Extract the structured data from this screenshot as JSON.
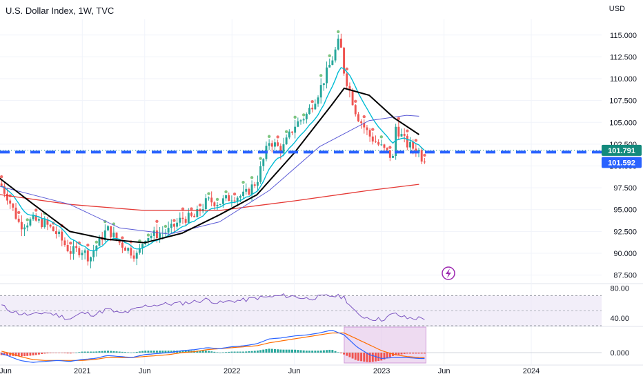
{
  "header": {
    "title": "U.S. Dollar Index, 1W, TVC",
    "currency": "USD"
  },
  "colors": {
    "up": "#26a69a",
    "down": "#ef5350",
    "ema_fast": "#00bcd4",
    "sma_mid": "#000000",
    "sma_slow": "#5b5bd6",
    "sma_long": "#e53935",
    "dash": "#2962ff",
    "price_badge": "#138a7d",
    "prev_badge": "#2962ff",
    "rsi_line": "#7e57c2",
    "rsi_band": "#ede7f6",
    "macd_line": "#2962ff",
    "signal_line": "#ff6d00",
    "hist_up": "#26a69a",
    "hist_down": "#ef5350",
    "highlight": "#e1bee7",
    "highlight_border": "#ab47bc"
  },
  "price_badges": {
    "last": "101.791",
    "prev": "101.592"
  },
  "icons": {
    "lightning": "lightning-icon"
  },
  "chart_data": [
    {
      "type": "candlestick",
      "title": "U.S. Dollar Index, 1W, TVC",
      "ylabel": "USD",
      "ylim": [
        86.6,
        116.8
      ],
      "yticks": [
        "87.500",
        "90.000",
        "92.500",
        "95.000",
        "97.500",
        "100.000",
        "102.500",
        "105.000",
        "107.500",
        "110.000",
        "112.500",
        "115.000"
      ],
      "xticks": [
        "Jun",
        "2021",
        "Jun",
        "2022",
        "Jun",
        "2023",
        "Jun",
        "2024"
      ],
      "last_price": 101.791,
      "reference_level": 101.592,
      "close_series": [
        {
          "x": "2020-06",
          "y": 99.0
        },
        {
          "x": "2020-07",
          "y": 96.5
        },
        {
          "x": "2020-08",
          "y": 93.2
        },
        {
          "x": "2020-09",
          "y": 93.8
        },
        {
          "x": "2020-10",
          "y": 93.4
        },
        {
          "x": "2020-11",
          "y": 92.2
        },
        {
          "x": "2020-12",
          "y": 90.2
        },
        {
          "x": "2021-01",
          "y": 90.4
        },
        {
          "x": "2021-02",
          "y": 90.6
        },
        {
          "x": "2021-03",
          "y": 92.8
        },
        {
          "x": "2021-04",
          "y": 91.2
        },
        {
          "x": "2021-05",
          "y": 90.1
        },
        {
          "x": "2021-06",
          "y": 91.9
        },
        {
          "x": "2021-07",
          "y": 92.2
        },
        {
          "x": "2021-08",
          "y": 92.6
        },
        {
          "x": "2021-09",
          "y": 94.0
        },
        {
          "x": "2021-10",
          "y": 94.1
        },
        {
          "x": "2021-11",
          "y": 96.0
        },
        {
          "x": "2021-12",
          "y": 95.8
        },
        {
          "x": "2022-01",
          "y": 96.5
        },
        {
          "x": "2022-02",
          "y": 96.6
        },
        {
          "x": "2022-03",
          "y": 98.3
        },
        {
          "x": "2022-04",
          "y": 102.9
        },
        {
          "x": "2022-05",
          "y": 101.8
        },
        {
          "x": "2022-06",
          "y": 104.6
        },
        {
          "x": "2022-07",
          "y": 105.9
        },
        {
          "x": "2022-08",
          "y": 108.6
        },
        {
          "x": "2022-09",
          "y": 112.1
        },
        {
          "x": "2022-10",
          "y": 110.7
        },
        {
          "x": "2022-11",
          "y": 105.9
        },
        {
          "x": "2022-12",
          "y": 103.5
        },
        {
          "x": "2023-01",
          "y": 102.1
        },
        {
          "x": "2023-02",
          "y": 104.8
        },
        {
          "x": "2023-03",
          "y": 102.5
        },
        {
          "x": "2023-04",
          "y": 101.7
        }
      ],
      "sma_mid": [
        {
          "x": "2020-06",
          "y": 99.0
        },
        {
          "x": "2020-09",
          "y": 95.7
        },
        {
          "x": "2020-12",
          "y": 92.5
        },
        {
          "x": "2021-03",
          "y": 91.6
        },
        {
          "x": "2021-06",
          "y": 91.2
        },
        {
          "x": "2021-09",
          "y": 92.3
        },
        {
          "x": "2021-12",
          "y": 94.4
        },
        {
          "x": "2022-03",
          "y": 96.7
        },
        {
          "x": "2022-06",
          "y": 101.5
        },
        {
          "x": "2022-09",
          "y": 107.0
        },
        {
          "x": "2022-10",
          "y": 108.9
        },
        {
          "x": "2022-12",
          "y": 108.1
        },
        {
          "x": "2023-02",
          "y": 105.5
        },
        {
          "x": "2023-04",
          "y": 103.6
        }
      ],
      "sma_slow": [
        {
          "x": "2020-06",
          "y": 97.8
        },
        {
          "x": "2020-12",
          "y": 95.6
        },
        {
          "x": "2021-04",
          "y": 92.9
        },
        {
          "x": "2021-08",
          "y": 92.2
        },
        {
          "x": "2021-12",
          "y": 93.6
        },
        {
          "x": "2022-04",
          "y": 97.2
        },
        {
          "x": "2022-08",
          "y": 102.2
        },
        {
          "x": "2022-12",
          "y": 105.2
        },
        {
          "x": "2023-03",
          "y": 105.8
        },
        {
          "x": "2023-04",
          "y": 105.7
        }
      ],
      "sma_long": [
        {
          "x": "2020-06",
          "y": 96.8
        },
        {
          "x": "2020-12",
          "y": 95.6
        },
        {
          "x": "2021-06",
          "y": 94.9
        },
        {
          "x": "2021-12",
          "y": 94.9
        },
        {
          "x": "2022-06",
          "y": 96.0
        },
        {
          "x": "2022-12",
          "y": 97.2
        },
        {
          "x": "2023-04",
          "y": 97.9
        }
      ]
    },
    {
      "type": "line",
      "ylim": [
        30,
        85
      ],
      "yticks": [
        "40.00",
        "80.00"
      ],
      "band": [
        30,
        70
      ],
      "values": [
        62,
        52,
        46,
        44,
        48,
        44,
        39,
        47,
        45,
        52,
        46,
        50,
        56,
        58,
        59,
        60,
        62,
        65,
        60,
        63,
        64,
        67,
        68,
        70,
        69,
        66,
        68,
        70,
        68,
        45,
        40,
        38,
        46,
        40,
        40
      ]
    },
    {
      "type": "area",
      "ylim": [
        -1.2,
        2.6
      ],
      "yticks": [
        "0.000"
      ],
      "highlight_x": [
        "2022-10",
        "2023-04"
      ],
      "macd": [
        0.1,
        -0.3,
        -0.8,
        -1.0,
        -0.9,
        -0.8,
        -0.9,
        -0.7,
        -0.6,
        -0.3,
        -0.4,
        -0.5,
        -0.2,
        -0.1,
        0.0,
        0.2,
        0.3,
        0.5,
        0.4,
        0.6,
        0.7,
        0.9,
        1.4,
        1.5,
        1.7,
        1.8,
        2.0,
        2.3,
        1.8,
        0.6,
        -0.2,
        -0.6,
        -0.5,
        -0.5,
        -0.6
      ],
      "signal": [
        0.3,
        0.0,
        -0.4,
        -0.7,
        -0.8,
        -0.8,
        -0.8,
        -0.8,
        -0.7,
        -0.5,
        -0.5,
        -0.5,
        -0.4,
        -0.3,
        -0.2,
        0.0,
        0.1,
        0.3,
        0.4,
        0.5,
        0.6,
        0.7,
        1.0,
        1.2,
        1.4,
        1.6,
        1.8,
        2.0,
        2.0,
        1.4,
        0.8,
        0.2,
        -0.2,
        -0.4,
        -0.5
      ]
    }
  ]
}
